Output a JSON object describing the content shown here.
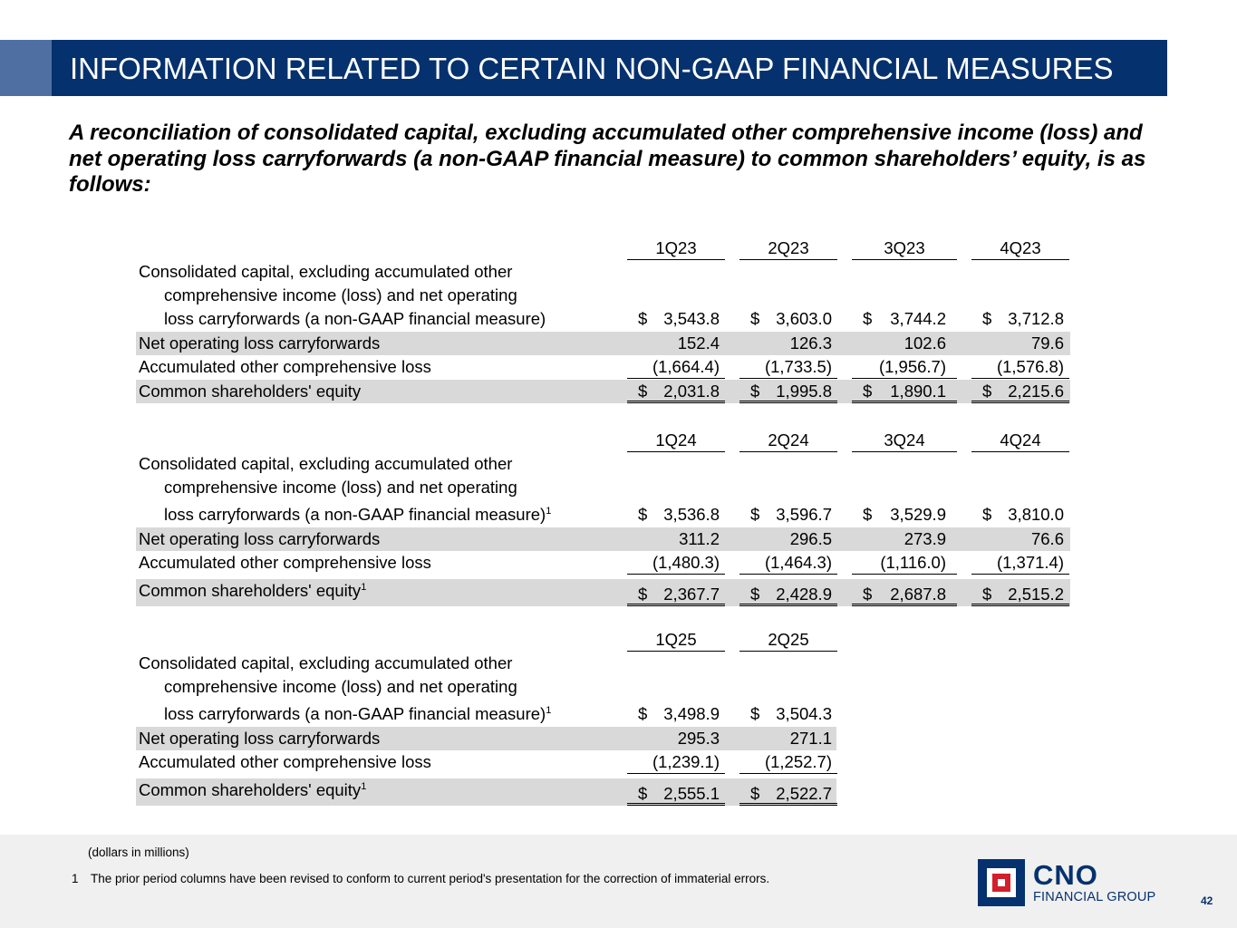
{
  "header": {
    "title": "INFORMATION RELATED TO CERTAIN NON-GAAP FINANCIAL MEASURES"
  },
  "subtitle": "A reconciliation of consolidated capital, excluding accumulated other comprehensive income (loss) and net operating loss carryforwards (a non-GAAP financial measure) to common shareholders’ equity, is as follows:",
  "labels": {
    "consolidated_line1": "Consolidated capital, excluding accumulated other",
    "consolidated_line2": "comprehensive income (loss) and net operating",
    "consolidated_line3": "loss carryforwards (a non-GAAP financial measure)",
    "nol": "Net operating loss carryforwards",
    "aocl": "Accumulated other comprehensive loss",
    "equity": "Common shareholders' equity",
    "footnote_mark": "1",
    "dollar": "$"
  },
  "tables": [
    {
      "headers": [
        "1Q23",
        "2Q23",
        "3Q23",
        "4Q23"
      ],
      "consolidated": [
        "3,543.8",
        "3,603.0",
        "3,744.2",
        "3,712.8"
      ],
      "nol": [
        "152.4",
        "126.3",
        "102.6",
        "79.6"
      ],
      "aocl": [
        "(1,664.4)",
        "(1,733.5)",
        "(1,956.7)",
        "(1,576.8)"
      ],
      "equity": [
        "2,031.8",
        "1,995.8",
        "1,890.1",
        "2,215.6"
      ]
    },
    {
      "headers": [
        "1Q24",
        "2Q24",
        "3Q24",
        "4Q24"
      ],
      "consolidated": [
        "3,536.8",
        "3,596.7",
        "3,529.9",
        "3,810.0"
      ],
      "nol": [
        "311.2",
        "296.5",
        "273.9",
        "76.6"
      ],
      "aocl": [
        "(1,480.3)",
        "(1,464.3)",
        "(1,116.0)",
        "(1,371.4)"
      ],
      "equity": [
        "2,367.7",
        "2,428.9",
        "2,687.8",
        "2,515.2"
      ]
    },
    {
      "headers": [
        "1Q25",
        "2Q25"
      ],
      "consolidated": [
        "3,498.9",
        "3,504.3"
      ],
      "nol": [
        "295.3",
        "271.1"
      ],
      "aocl": [
        "(1,239.1)",
        "(1,252.7)"
      ],
      "equity": [
        "2,555.1",
        "2,522.7"
      ]
    }
  ],
  "footer": {
    "units_note": "(dollars in millions)",
    "footnote_number": "1",
    "footnote_text": "The prior period columns have been revised to conform to current period's presentation for the correction of immaterial errors.",
    "page_number": "42"
  },
  "logo": {
    "name": "CNO",
    "tagline": "FINANCIAL GROUP"
  },
  "colors": {
    "brand_navy": "#05316e",
    "accent_blue": "#4f6fa3",
    "logo_red": "#d21f2b",
    "row_shade": "#d9d9d9"
  }
}
